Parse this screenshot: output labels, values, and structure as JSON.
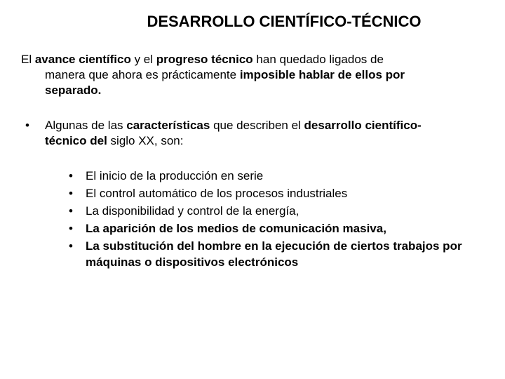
{
  "title": "DESARROLLO CIENTÍFICO-TÉCNICO",
  "intro": {
    "p1": "El ",
    "b1": "avance científico",
    "p2": " y el ",
    "b2": "progreso técnico",
    "p3": " han quedado ligados de",
    "line2a": "manera que ahora es prácticamente ",
    "b3": "imposible hablar de ellos por",
    "b4": "separado."
  },
  "para2": {
    "p1": "Algunas de las ",
    "b1": "características",
    "p2": " que describen el ",
    "b2": "desarrollo científico-",
    "b3": "técnico del",
    "p3": " siglo XX, son:"
  },
  "items": {
    "i1": "El inicio de la producción en serie",
    "i2": "El control automático de los procesos industriales",
    "i3": "La disponibilidad y control de la energía,",
    "i4": "La aparición de los medios de comunicación masiva,",
    "i5": "La substitución del hombre en la ejecución de ciertos trabajos por máquinas o dispositivos electrónicos"
  },
  "bullet": "•"
}
